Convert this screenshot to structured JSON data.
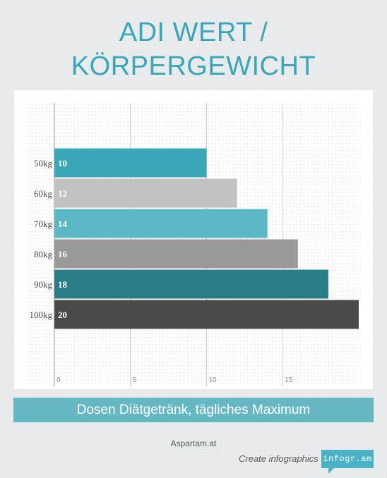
{
  "title": {
    "line1": "ADI WERT /",
    "line2": "KÖRPERGEWICHT"
  },
  "caption": "Dosen Diätgetränk, tägliches Maximum",
  "source": "Aspartam.at",
  "footer": {
    "create_label": "Create infographics",
    "badge_label": "infogr.am"
  },
  "colors": {
    "title": "#3aa7b8",
    "caption_bg": "#66b7c4",
    "badge_bg": "#4bb1c5"
  },
  "chart_data": {
    "type": "bar",
    "orientation": "horizontal",
    "title": "",
    "xlabel": "",
    "ylabel": "",
    "categories": [
      "50kg",
      "60kg",
      "70kg",
      "80kg",
      "90kg",
      "100kg"
    ],
    "values": [
      10,
      12,
      14,
      16,
      18,
      20
    ],
    "bar_colors": [
      "#3aa7b8",
      "#c2c2c2",
      "#5db8c6",
      "#999999",
      "#2a7e88",
      "#4a4a4a"
    ],
    "xlim": [
      0,
      20
    ],
    "x_ticks": [
      "0",
      "5",
      "10",
      "15"
    ],
    "x_tick_values": [
      0,
      5,
      10,
      15
    ],
    "grid": true,
    "data_labels": true
  }
}
